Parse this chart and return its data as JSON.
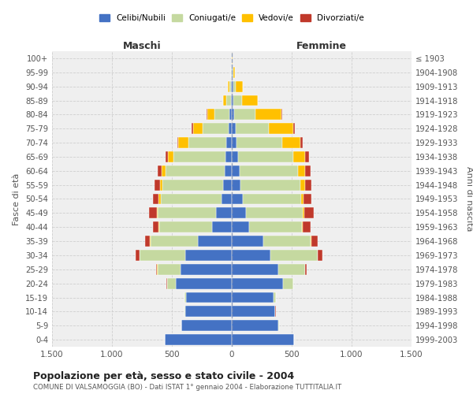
{
  "age_groups": [
    "0-4",
    "5-9",
    "10-14",
    "15-19",
    "20-24",
    "25-29",
    "30-34",
    "35-39",
    "40-44",
    "45-49",
    "50-54",
    "55-59",
    "60-64",
    "65-69",
    "70-74",
    "75-79",
    "80-84",
    "85-89",
    "90-94",
    "95-99",
    "100+"
  ],
  "birth_years": [
    "1999-2003",
    "1994-1998",
    "1989-1993",
    "1984-1988",
    "1979-1983",
    "1974-1978",
    "1969-1973",
    "1964-1968",
    "1959-1963",
    "1954-1958",
    "1949-1953",
    "1944-1948",
    "1939-1943",
    "1934-1938",
    "1929-1933",
    "1924-1928",
    "1919-1923",
    "1914-1918",
    "1909-1913",
    "1904-1908",
    "≤ 1903"
  ],
  "maschi": {
    "celibe": [
      560,
      420,
      390,
      380,
      470,
      430,
      390,
      280,
      165,
      130,
      85,
      70,
      60,
      55,
      45,
      25,
      18,
      8,
      5,
      3,
      2
    ],
    "coniugato": [
      2,
      2,
      5,
      15,
      70,
      190,
      380,
      400,
      440,
      490,
      510,
      510,
      490,
      430,
      320,
      220,
      130,
      40,
      15,
      3,
      1
    ],
    "vedovo": [
      0,
      0,
      0,
      0,
      1,
      2,
      2,
      3,
      5,
      8,
      15,
      20,
      35,
      50,
      80,
      80,
      55,
      25,
      10,
      2,
      0
    ],
    "divorziato": [
      0,
      0,
      1,
      2,
      5,
      10,
      30,
      40,
      45,
      65,
      50,
      45,
      35,
      20,
      12,
      8,
      5,
      2,
      1,
      0,
      0
    ]
  },
  "femmine": {
    "nubile": [
      520,
      390,
      360,
      350,
      430,
      390,
      325,
      265,
      145,
      120,
      90,
      75,
      65,
      55,
      40,
      30,
      20,
      15,
      10,
      5,
      2
    ],
    "coniugata": [
      2,
      2,
      5,
      18,
      80,
      220,
      390,
      395,
      440,
      475,
      490,
      500,
      490,
      460,
      380,
      280,
      175,
      70,
      25,
      5,
      1
    ],
    "vedova": [
      0,
      0,
      0,
      0,
      1,
      2,
      3,
      5,
      8,
      12,
      20,
      35,
      60,
      100,
      150,
      200,
      220,
      130,
      55,
      15,
      2
    ],
    "divorziata": [
      0,
      0,
      1,
      2,
      5,
      12,
      40,
      55,
      65,
      80,
      65,
      55,
      45,
      30,
      20,
      15,
      8,
      3,
      2,
      0,
      0
    ]
  },
  "colors": {
    "celibe": "#4472c4",
    "coniugato": "#c5d9a0",
    "vedovo": "#ffc000",
    "divorziato": "#c0392b"
  },
  "xlim": 1500,
  "title": "Popolazione per età, sesso e stato civile - 2004",
  "subtitle": "COMUNE DI VALSAMOGGIA (BO) - Dati ISTAT 1° gennaio 2004 - Elaborazione TUTTITALIA.IT",
  "ylabel_left": "Fasce di età",
  "ylabel_right": "Anni di nascita",
  "xlabel_left": "Maschi",
  "xlabel_right": "Femmine",
  "bg_color": "#ffffff",
  "grid_color": "#cccccc"
}
